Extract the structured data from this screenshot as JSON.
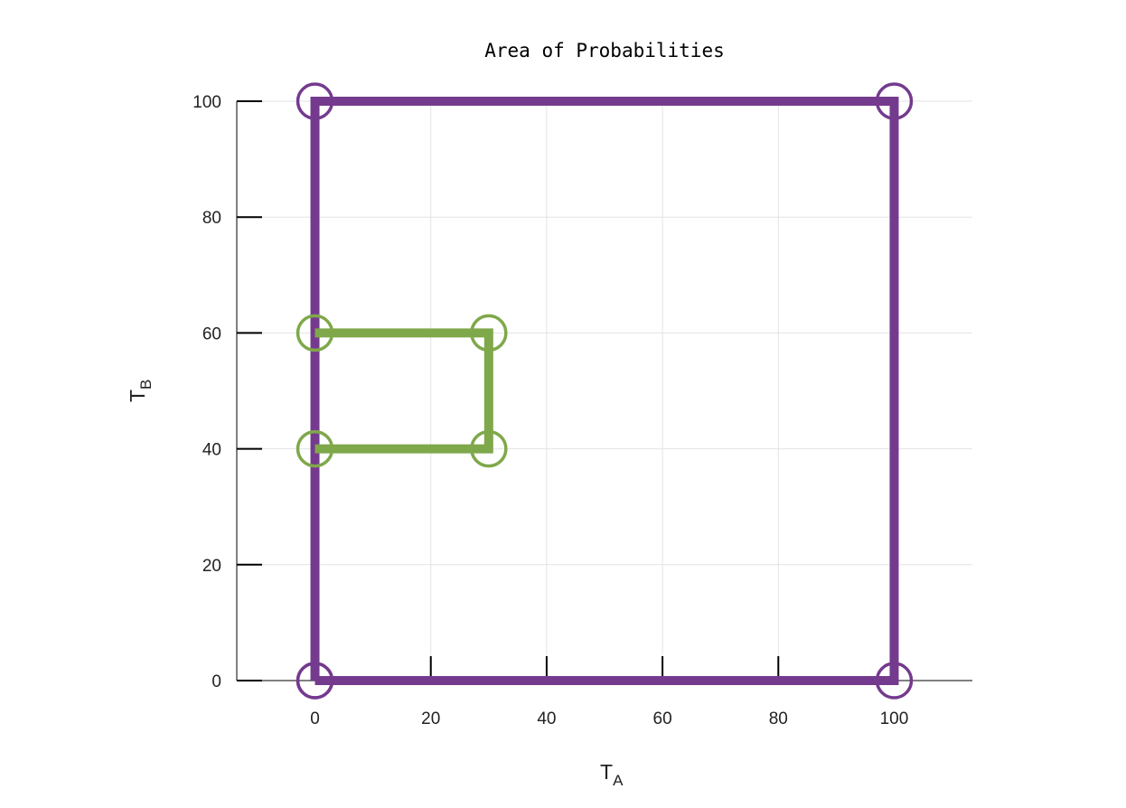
{
  "chart_data": {
    "type": "line",
    "title": "Area of Probabilities",
    "xlabel": {
      "main": "T",
      "sub": "A"
    },
    "ylabel": {
      "main": "T",
      "sub": "B"
    },
    "xlim": [
      -13.5,
      113.5
    ],
    "ylim": [
      0,
      100
    ],
    "xticks": [
      0,
      20,
      40,
      60,
      80,
      100
    ],
    "yticks": [
      0,
      20,
      40,
      60,
      80,
      100
    ],
    "grid": true,
    "series": [
      {
        "color": "#743a8e",
        "x": [
          0,
          0,
          100,
          100,
          0
        ],
        "y": [
          0,
          100,
          100,
          0,
          0
        ]
      },
      {
        "color": "#7fa84a",
        "x": [
          0,
          30,
          30,
          0
        ],
        "y": [
          60,
          60,
          40,
          40
        ]
      }
    ]
  }
}
